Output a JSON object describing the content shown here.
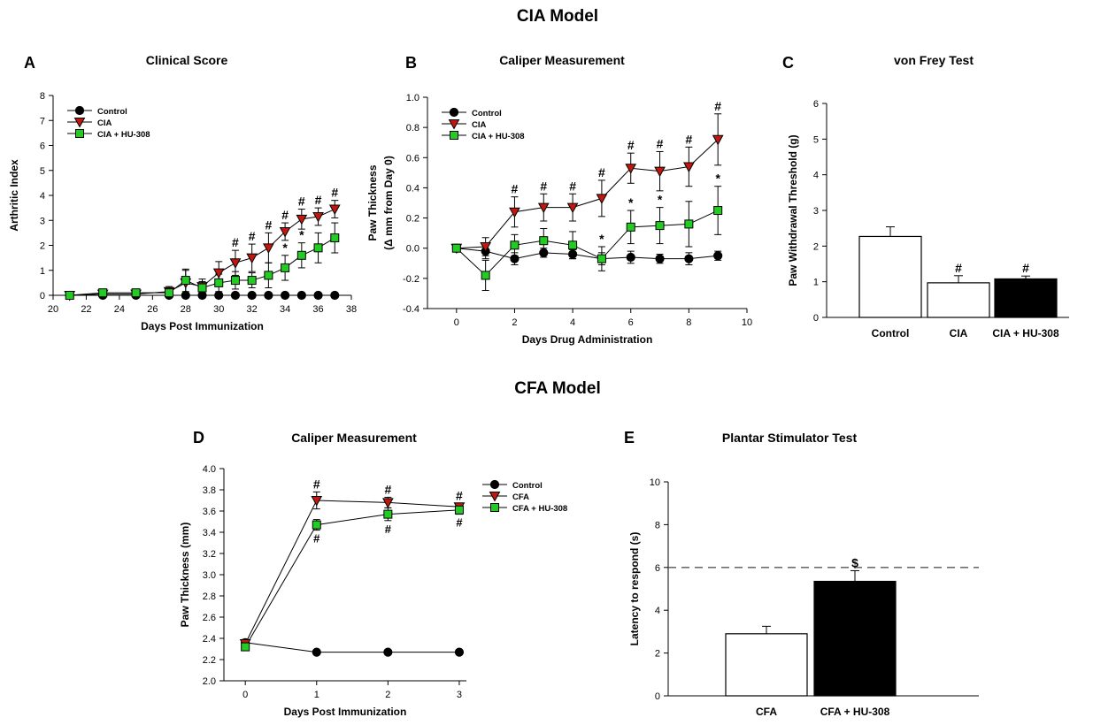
{
  "sections": {
    "top": "CIA Model",
    "bottom": "CFA Model"
  },
  "chart_data": [
    {
      "panel": "A",
      "title": "Clinical Score",
      "type": "line",
      "xlabel": "Days Post Immunization",
      "ylabel": "Arthritic Index",
      "xlim": [
        20,
        38
      ],
      "ylim": [
        0,
        8
      ],
      "xticks": [
        20,
        22,
        24,
        26,
        28,
        30,
        32,
        34,
        36,
        38
      ],
      "yticks": [
        0,
        1,
        2,
        3,
        4,
        5,
        6,
        7,
        8
      ],
      "legend": {
        "placement": "top-left",
        "entries": [
          "Control",
          "CIA",
          "CIA + HU-308"
        ]
      },
      "series": [
        {
          "name": "Control",
          "color": "#000000",
          "marker": "circle",
          "x": [
            21,
            23,
            25,
            27,
            28,
            29,
            30,
            31,
            32,
            33,
            34,
            35,
            36,
            37
          ],
          "y": [
            0,
            0,
            0,
            0,
            0,
            0,
            0,
            0,
            0,
            0,
            0,
            0,
            0,
            0
          ],
          "err": [
            0,
            0,
            0,
            0,
            0,
            0,
            0,
            0,
            0,
            0,
            0,
            0,
            0,
            0
          ],
          "marks": []
        },
        {
          "name": "CIA",
          "color": "#c0180f",
          "marker": "triangle-down",
          "x": [
            21,
            23,
            25,
            27,
            28,
            29,
            30,
            31,
            32,
            33,
            34,
            35,
            36,
            37
          ],
          "y": [
            0,
            0.05,
            0.05,
            0.15,
            0.5,
            0.35,
            0.9,
            1.3,
            1.5,
            1.9,
            2.55,
            3.05,
            3.15,
            3.45
          ],
          "err": [
            0.1,
            0.1,
            0.1,
            0.2,
            0.5,
            0.3,
            0.45,
            0.5,
            0.55,
            0.6,
            0.35,
            0.4,
            0.35,
            0.35
          ],
          "marks": [
            {
              "x": 31,
              "symbol": "#"
            },
            {
              "x": 32,
              "symbol": "#"
            },
            {
              "x": 33,
              "symbol": "#"
            },
            {
              "x": 34,
              "symbol": "#"
            },
            {
              "x": 35,
              "symbol": "#"
            },
            {
              "x": 36,
              "symbol": "#"
            },
            {
              "x": 37,
              "symbol": "#"
            }
          ]
        },
        {
          "name": "CIA + HU-308",
          "color": "#22cc22",
          "marker": "square",
          "x": [
            21,
            23,
            25,
            27,
            28,
            29,
            30,
            31,
            32,
            33,
            34,
            35,
            36,
            37
          ],
          "y": [
            0,
            0.1,
            0.1,
            0.1,
            0.6,
            0.3,
            0.5,
            0.6,
            0.6,
            0.8,
            1.1,
            1.6,
            1.9,
            2.3
          ],
          "err": [
            0.1,
            0.1,
            0.1,
            0.1,
            0.45,
            0.25,
            0.35,
            0.35,
            0.3,
            0.5,
            0.5,
            0.5,
            0.6,
            0.6
          ],
          "marks": [
            {
              "x": 34,
              "symbol": "*"
            },
            {
              "x": 35,
              "symbol": "*"
            }
          ]
        }
      ]
    },
    {
      "panel": "B",
      "title": "Caliper Measurement",
      "type": "line",
      "xlabel": "Days Drug Administration",
      "ylabel": "Paw Thickness",
      "ylabel2": "(Δ mm from Day 0)",
      "xlim": [
        -1,
        10
      ],
      "ylim": [
        -0.4,
        1.0
      ],
      "xticks": [
        0,
        2,
        4,
        6,
        8,
        10
      ],
      "yticks": [
        -0.4,
        -0.2,
        0.0,
        0.2,
        0.4,
        0.6,
        0.8,
        1.0
      ],
      "ytick_labels": [
        "-0.4",
        "-0.2",
        "0.0",
        "0.2",
        "0.4",
        "0.6",
        "0.8",
        "1.0"
      ],
      "legend": {
        "placement": "top-left",
        "entries": [
          "Control",
          "CIA",
          "CIA + HU-308"
        ]
      },
      "series": [
        {
          "name": "Control",
          "color": "#000000",
          "marker": "circle",
          "x": [
            0,
            1,
            2,
            3,
            4,
            5,
            6,
            7,
            8,
            9
          ],
          "y": [
            0,
            -0.02,
            -0.07,
            -0.03,
            -0.04,
            -0.07,
            -0.06,
            -0.07,
            -0.07,
            -0.05
          ],
          "err": [
            0.02,
            0.05,
            0.04,
            0.03,
            0.03,
            0.04,
            0.04,
            0.03,
            0.04,
            0.03
          ],
          "marks": []
        },
        {
          "name": "CIA",
          "color": "#c0180f",
          "marker": "triangle-down",
          "x": [
            0,
            1,
            2,
            3,
            4,
            5,
            6,
            7,
            8,
            9
          ],
          "y": [
            0,
            0.01,
            0.24,
            0.27,
            0.27,
            0.33,
            0.53,
            0.51,
            0.54,
            0.72
          ],
          "err": [
            0.02,
            0.06,
            0.1,
            0.09,
            0.09,
            0.12,
            0.1,
            0.13,
            0.13,
            0.17
          ],
          "marks": [
            {
              "x": 2,
              "symbol": "#"
            },
            {
              "x": 3,
              "symbol": "#"
            },
            {
              "x": 4,
              "symbol": "#"
            },
            {
              "x": 5,
              "symbol": "#"
            },
            {
              "x": 6,
              "symbol": "#"
            },
            {
              "x": 7,
              "symbol": "#"
            },
            {
              "x": 8,
              "symbol": "#"
            },
            {
              "x": 9,
              "symbol": "#"
            }
          ]
        },
        {
          "name": "CIA + HU-308",
          "color": "#22cc22",
          "marker": "square",
          "x": [
            0,
            1,
            2,
            3,
            4,
            5,
            6,
            7,
            8,
            9
          ],
          "y": [
            0,
            -0.18,
            0.02,
            0.05,
            0.02,
            -0.07,
            0.14,
            0.15,
            0.16,
            0.25
          ],
          "err": [
            0.02,
            0.1,
            0.07,
            0.08,
            0.09,
            0.08,
            0.11,
            0.12,
            0.15,
            0.16
          ],
          "marks": [
            {
              "x": 5,
              "symbol": "*"
            },
            {
              "x": 6,
              "symbol": "*"
            },
            {
              "x": 7,
              "symbol": "*"
            },
            {
              "x": 9,
              "symbol": "*"
            }
          ]
        }
      ]
    },
    {
      "panel": "C",
      "title": "von Frey Test",
      "type": "bar",
      "ylabel": "Paw Withdrawal Threshold (g)",
      "ylim": [
        0,
        6
      ],
      "yticks": [
        0,
        1,
        2,
        3,
        4,
        5,
        6
      ],
      "categories": [
        "Control",
        "CIA",
        "CIA + HU-308"
      ],
      "values": [
        2.27,
        0.97,
        1.08
      ],
      "err": [
        0.27,
        0.2,
        0.08
      ],
      "fills": [
        "#ffffff",
        "#ffffff",
        "#000000"
      ],
      "marks": [
        "",
        "#",
        "#"
      ]
    },
    {
      "panel": "D",
      "title": "Caliper Measurement",
      "type": "line",
      "xlabel": "Days Post Immunization",
      "ylabel": "Paw Thickness (mm)",
      "xlim": [
        -0.3,
        3.1
      ],
      "ylim": [
        2.0,
        4.0
      ],
      "xticks": [
        0,
        1,
        2,
        3
      ],
      "yticks": [
        2.0,
        2.2,
        2.4,
        2.6,
        2.8,
        3.0,
        3.2,
        3.4,
        3.6,
        3.8,
        4.0
      ],
      "ytick_labels": [
        "2.0",
        "2.2",
        "2.4",
        "2.6",
        "2.8",
        "3.0",
        "3.2",
        "3.4",
        "3.6",
        "3.8",
        "4.0"
      ],
      "legend": {
        "placement": "top-right",
        "entries": [
          "Control",
          "CFA",
          "CFA + HU-308"
        ]
      },
      "series": [
        {
          "name": "Control",
          "color": "#000000",
          "marker": "circle",
          "x": [
            0,
            1,
            2,
            3
          ],
          "y": [
            2.36,
            2.27,
            2.27,
            2.27
          ],
          "err": [
            0.03,
            0.01,
            0.01,
            0.01
          ],
          "marks": []
        },
        {
          "name": "CFA",
          "color": "#c0180f",
          "marker": "triangle-down",
          "x": [
            0,
            1,
            2,
            3
          ],
          "y": [
            2.35,
            3.7,
            3.68,
            3.64
          ],
          "err": [
            0.03,
            0.08,
            0.05,
            0.03
          ],
          "marks": [
            {
              "x": 1,
              "symbol": "#",
              "pos": "above"
            },
            {
              "x": 2,
              "symbol": "#",
              "pos": "above"
            },
            {
              "x": 3,
              "symbol": "#",
              "pos": "above"
            }
          ]
        },
        {
          "name": "CFA + HU-308",
          "color": "#22cc22",
          "marker": "square",
          "x": [
            0,
            1,
            2,
            3
          ],
          "y": [
            2.32,
            3.47,
            3.57,
            3.61
          ],
          "err": [
            0.03,
            0.05,
            0.06,
            0.04
          ],
          "marks": [
            {
              "x": 1,
              "symbol": "#",
              "pos": "below"
            },
            {
              "x": 2,
              "symbol": "#",
              "pos": "below"
            },
            {
              "x": 3,
              "symbol": "#",
              "pos": "below"
            }
          ]
        }
      ]
    },
    {
      "panel": "E",
      "title": "Plantar Stimulator Test",
      "type": "bar",
      "ylabel": "Latency to respond (s)",
      "ylim": [
        0,
        10
      ],
      "yticks": [
        0,
        2,
        4,
        6,
        8,
        10
      ],
      "categories": [
        "CFA",
        "CFA + HU-308"
      ],
      "values": [
        2.9,
        5.35
      ],
      "err": [
        0.35,
        0.5
      ],
      "fills": [
        "#ffffff",
        "#000000"
      ],
      "marks": [
        "",
        "$"
      ],
      "reference_line": 6
    }
  ]
}
